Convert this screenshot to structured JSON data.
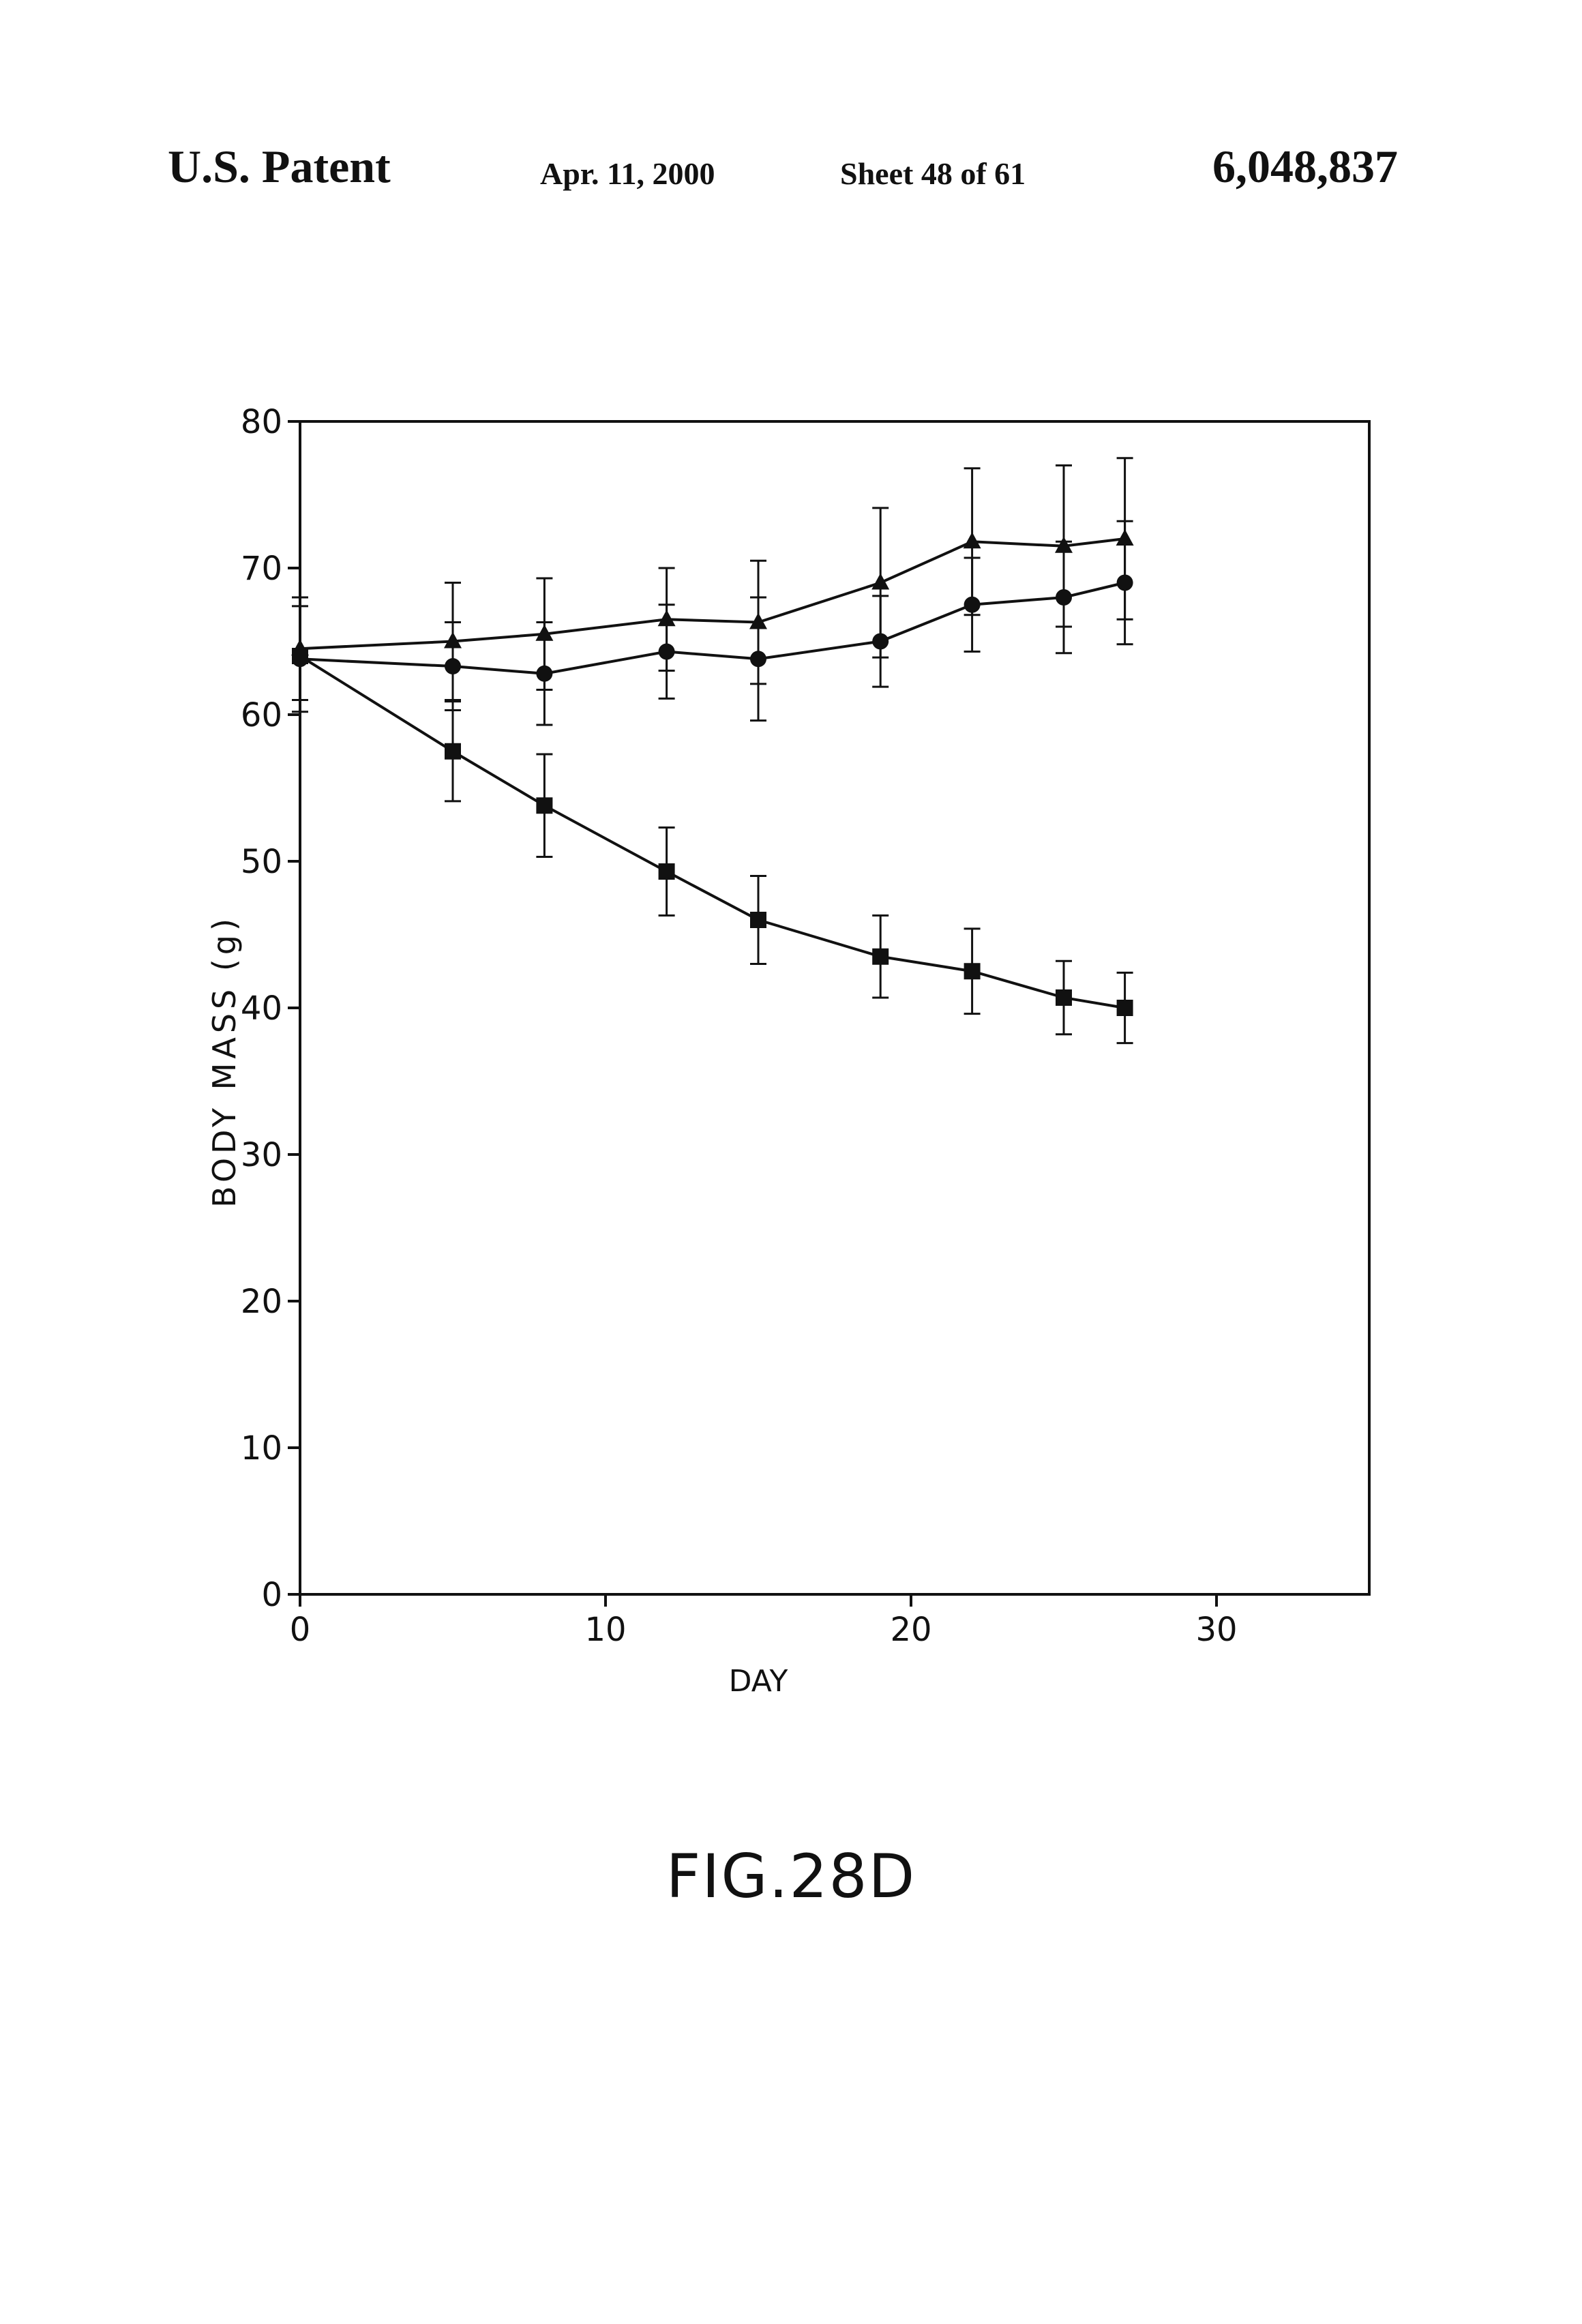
{
  "header": {
    "left": "U.S. Patent",
    "date": "Apr. 11, 2000",
    "sheet": "Sheet 48 of 61",
    "number": "6,048,837"
  },
  "figure_label": "FIG.28D",
  "chart_data": {
    "type": "line",
    "title": "",
    "xlabel": "DAY",
    "ylabel": "BODY MASS (g)",
    "xlim": [
      0,
      35
    ],
    "ylim": [
      0,
      80
    ],
    "x_ticks": [
      0,
      10,
      20,
      30
    ],
    "x_tick_labels": [
      "0",
      "10",
      "20",
      "30"
    ],
    "y_ticks": [
      0,
      10,
      20,
      30,
      40,
      50,
      60,
      70,
      80
    ],
    "y_tick_labels": [
      "0",
      "10",
      "20",
      "30",
      "40",
      "50",
      "60",
      "70",
      "80"
    ],
    "grid": false,
    "legend": "none",
    "series": [
      {
        "marker": "triangle",
        "x": [
          0,
          5,
          8,
          12,
          15,
          19,
          22,
          25,
          27
        ],
        "y": [
          64.5,
          65,
          65.5,
          66.5,
          66.3,
          69,
          71.8,
          71.5,
          72
        ],
        "err": [
          3.5,
          4,
          3.8,
          3.5,
          4.2,
          5.1,
          5,
          5.5,
          5.5
        ]
      },
      {
        "marker": "circle",
        "x": [
          0,
          5,
          8,
          12,
          15,
          19,
          22,
          25,
          27
        ],
        "y": [
          63.8,
          63.3,
          62.8,
          64.3,
          63.8,
          65,
          67.5,
          68,
          69
        ],
        "err": [
          3.6,
          3,
          3.5,
          3.2,
          4.2,
          3.1,
          3.2,
          3.8,
          4.2
        ]
      },
      {
        "marker": "square",
        "x": [
          0,
          5,
          8,
          12,
          15,
          19,
          22,
          25,
          27
        ],
        "y": [
          64,
          57.5,
          53.8,
          49.3,
          46,
          43.5,
          42.5,
          40.7,
          40
        ],
        "err": [
          0,
          3.4,
          3.5,
          3,
          3,
          2.8,
          2.9,
          2.5,
          2.4
        ]
      }
    ]
  }
}
